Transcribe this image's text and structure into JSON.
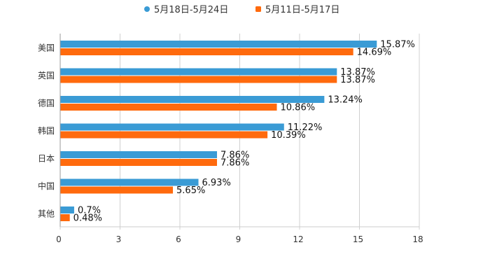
{
  "chart_data": {
    "type": "bar",
    "orientation": "horizontal",
    "title": "",
    "xlabel": "",
    "ylabel": "",
    "xlim": [
      0,
      18
    ],
    "xticks": [
      0,
      3,
      6,
      9,
      12,
      15,
      18
    ],
    "grid": true,
    "legend_position": "top-center",
    "categories": [
      "美国",
      "英国",
      "德国",
      "韩国",
      "日本",
      "中国",
      "其他"
    ],
    "series": [
      {
        "name": "5月18日-5月24日",
        "color": "#3a9bd5",
        "values": [
          15.87,
          13.87,
          13.24,
          11.22,
          7.86,
          6.93,
          0.7
        ],
        "labels": [
          "15.87%",
          "13.87%",
          "13.24%",
          "11.22%",
          "7.86%",
          "6.93%",
          "0.7%"
        ]
      },
      {
        "name": "5月11日-5月17日",
        "color": "#ff6a0d",
        "values": [
          14.69,
          13.87,
          10.86,
          10.39,
          7.86,
          5.65,
          0.48
        ],
        "labels": [
          "14.69%",
          "13.87%",
          "10.86%",
          "10.39%",
          "7.86%",
          "5.65%",
          "0.48%"
        ]
      }
    ]
  }
}
